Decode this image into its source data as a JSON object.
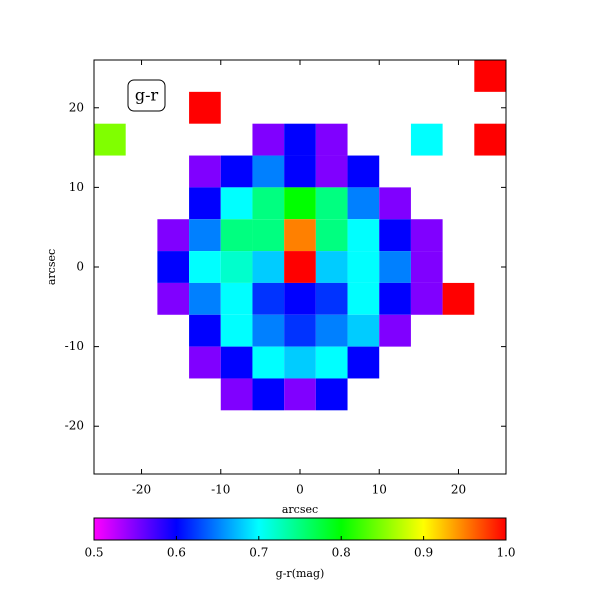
{
  "chart_data": {
    "type": "heatmap",
    "annotation": "g-r",
    "xlabel": "arcsec",
    "ylabel": "arcsec",
    "x": [
      -24,
      -20,
      -16,
      -12,
      -8,
      -4,
      0,
      4,
      8,
      12,
      16,
      20,
      24
    ],
    "y": [
      24,
      20,
      16,
      12,
      8,
      4,
      0,
      -4,
      -8,
      -12,
      -16,
      -20,
      -24
    ],
    "z": [
      [
        null,
        null,
        null,
        null,
        null,
        null,
        null,
        null,
        null,
        null,
        null,
        null,
        1.0
      ],
      [
        null,
        null,
        null,
        1.0,
        null,
        null,
        null,
        null,
        null,
        null,
        null,
        null,
        null
      ],
      [
        0.85,
        null,
        null,
        null,
        null,
        0.55,
        0.6,
        0.55,
        null,
        null,
        0.7,
        null,
        1.0
      ],
      [
        null,
        null,
        null,
        0.55,
        0.6,
        0.65,
        0.6,
        0.55,
        0.6,
        null,
        null,
        null,
        null
      ],
      [
        null,
        null,
        null,
        0.6,
        0.7,
        0.75,
        0.8,
        0.75,
        0.65,
        0.55,
        null,
        null,
        null
      ],
      [
        null,
        null,
        0.55,
        0.65,
        0.75,
        0.75,
        0.95,
        0.75,
        0.7,
        0.6,
        0.55,
        null,
        null
      ],
      [
        null,
        null,
        0.6,
        0.7,
        0.72,
        0.68,
        1.0,
        0.68,
        0.7,
        0.65,
        0.55,
        null,
        null
      ],
      [
        null,
        null,
        0.55,
        0.65,
        0.7,
        0.62,
        0.6,
        0.62,
        0.7,
        0.6,
        0.55,
        1.0,
        null
      ],
      [
        null,
        null,
        null,
        0.6,
        0.7,
        0.65,
        0.62,
        0.65,
        0.68,
        0.55,
        null,
        null,
        null
      ],
      [
        null,
        null,
        null,
        0.55,
        0.6,
        0.7,
        0.68,
        0.7,
        0.6,
        null,
        null,
        null,
        null
      ],
      [
        null,
        null,
        null,
        null,
        0.55,
        0.6,
        0.55,
        0.6,
        null,
        null,
        null,
        null,
        null
      ],
      [
        null,
        null,
        null,
        null,
        null,
        null,
        null,
        null,
        null,
        null,
        null,
        null,
        null
      ],
      [
        null,
        null,
        null,
        null,
        null,
        null,
        null,
        null,
        null,
        null,
        null,
        null,
        null
      ]
    ],
    "cell_size": 4,
    "xlim": [
      -26,
      26
    ],
    "ylim": [
      -26,
      26
    ],
    "xticks": [
      -20,
      -10,
      0,
      10,
      20
    ],
    "yticks": [
      -20,
      -10,
      0,
      10,
      20
    ],
    "clim": [
      0.5,
      1.0
    ],
    "cticks": [
      0.5,
      0.6,
      0.7,
      0.8,
      0.9,
      {
        "value": 1.0,
        "label": "1.0"
      }
    ],
    "colorbar_label": "g-r(mag)"
  }
}
